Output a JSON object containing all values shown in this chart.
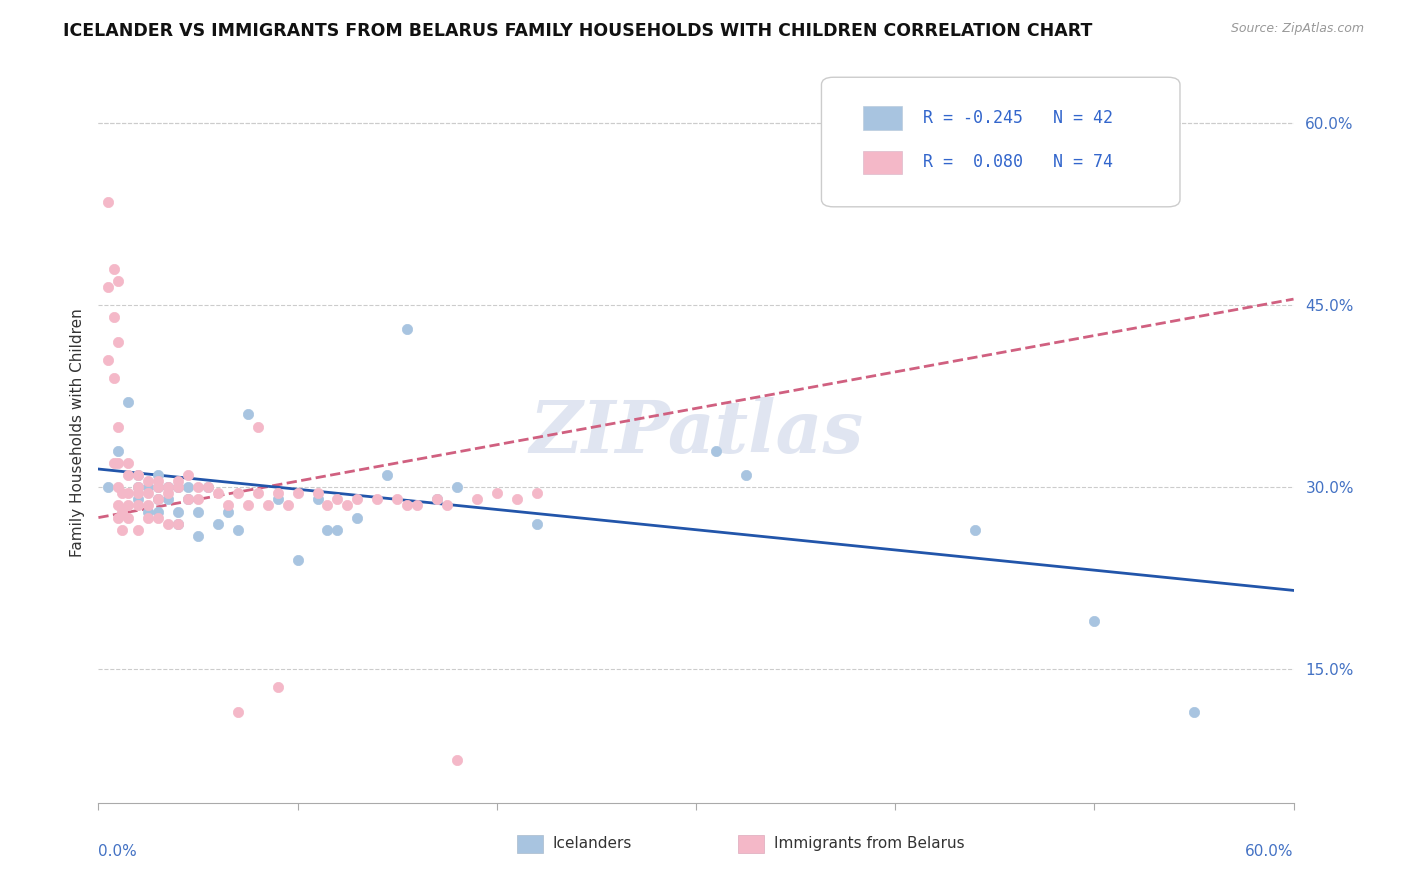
{
  "title": "ICELANDER VS IMMIGRANTS FROM BELARUS FAMILY HOUSEHOLDS WITH CHILDREN CORRELATION CHART",
  "source": "Source: ZipAtlas.com",
  "ylabel": "Family Households with Children",
  "ylabel_right_ticks": [
    "15.0%",
    "30.0%",
    "45.0%",
    "60.0%"
  ],
  "ylabel_right_values": [
    0.15,
    0.3,
    0.45,
    0.6
  ],
  "xmin": 0.0,
  "xmax": 0.6,
  "ymin": 0.04,
  "ymax": 0.65,
  "legend_R_icelander": "-0.245",
  "legend_N_icelander": "42",
  "legend_R_belarus": "0.080",
  "legend_N_belarus": "74",
  "icelander_color": "#a8c4e0",
  "belarus_color": "#f4b8c8",
  "icelander_line_color": "#2255aa",
  "belarus_line_color": "#d06080",
  "icelander_line_style": "solid",
  "belarus_line_style": "dashed",
  "watermark_text": "ZIPatlas",
  "grid_color": "#cccccc",
  "icelander_x": [
    0.005,
    0.01,
    0.015,
    0.02,
    0.02,
    0.02,
    0.025,
    0.025,
    0.03,
    0.03,
    0.03,
    0.03,
    0.035,
    0.035,
    0.04,
    0.04,
    0.04,
    0.045,
    0.045,
    0.05,
    0.05,
    0.055,
    0.06,
    0.065,
    0.07,
    0.075,
    0.09,
    0.1,
    0.11,
    0.115,
    0.12,
    0.13,
    0.145,
    0.155,
    0.17,
    0.18,
    0.22,
    0.31,
    0.325,
    0.44,
    0.5,
    0.55
  ],
  "icelander_y": [
    0.3,
    0.33,
    0.37,
    0.29,
    0.3,
    0.31,
    0.28,
    0.3,
    0.28,
    0.29,
    0.3,
    0.31,
    0.29,
    0.3,
    0.27,
    0.28,
    0.3,
    0.29,
    0.3,
    0.26,
    0.28,
    0.3,
    0.27,
    0.28,
    0.265,
    0.36,
    0.29,
    0.24,
    0.29,
    0.265,
    0.265,
    0.275,
    0.31,
    0.43,
    0.29,
    0.3,
    0.27,
    0.33,
    0.31,
    0.265,
    0.19,
    0.115
  ],
  "belarus_x": [
    0.005,
    0.005,
    0.005,
    0.008,
    0.008,
    0.008,
    0.008,
    0.01,
    0.01,
    0.01,
    0.01,
    0.01,
    0.01,
    0.01,
    0.012,
    0.012,
    0.012,
    0.015,
    0.015,
    0.015,
    0.015,
    0.015,
    0.02,
    0.02,
    0.02,
    0.02,
    0.02,
    0.025,
    0.025,
    0.025,
    0.025,
    0.03,
    0.03,
    0.03,
    0.03,
    0.035,
    0.035,
    0.035,
    0.04,
    0.04,
    0.04,
    0.045,
    0.045,
    0.05,
    0.05,
    0.055,
    0.06,
    0.065,
    0.07,
    0.075,
    0.08,
    0.085,
    0.09,
    0.095,
    0.1,
    0.11,
    0.115,
    0.12,
    0.125,
    0.13,
    0.14,
    0.15,
    0.155,
    0.16,
    0.17,
    0.175,
    0.18,
    0.19,
    0.2,
    0.21,
    0.22,
    0.08,
    0.09,
    0.07
  ],
  "belarus_y": [
    0.535,
    0.465,
    0.405,
    0.48,
    0.44,
    0.39,
    0.32,
    0.47,
    0.42,
    0.35,
    0.32,
    0.3,
    0.285,
    0.275,
    0.295,
    0.28,
    0.265,
    0.32,
    0.31,
    0.295,
    0.285,
    0.275,
    0.31,
    0.3,
    0.295,
    0.285,
    0.265,
    0.305,
    0.295,
    0.285,
    0.275,
    0.305,
    0.3,
    0.29,
    0.275,
    0.3,
    0.295,
    0.27,
    0.305,
    0.3,
    0.27,
    0.31,
    0.29,
    0.3,
    0.29,
    0.3,
    0.295,
    0.285,
    0.295,
    0.285,
    0.295,
    0.285,
    0.295,
    0.285,
    0.295,
    0.295,
    0.285,
    0.29,
    0.285,
    0.29,
    0.29,
    0.29,
    0.285,
    0.285,
    0.29,
    0.285,
    0.075,
    0.29,
    0.295,
    0.29,
    0.295,
    0.35,
    0.135,
    0.115
  ],
  "icel_line_x0": 0.0,
  "icel_line_x1": 0.6,
  "icel_line_y0": 0.315,
  "icel_line_y1": 0.215,
  "bela_line_x0": 0.0,
  "bela_line_x1": 0.6,
  "bela_line_y0": 0.275,
  "bela_line_y1": 0.455
}
